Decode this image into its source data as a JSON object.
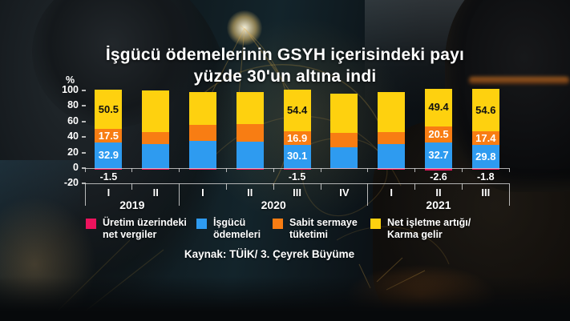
{
  "title": {
    "line1": "İşgücü ödemelerinin GSYH içerisindeki payı",
    "line2": "yüzde 30'un altına indi"
  },
  "axis": {
    "unit_label": "%",
    "y_ticks": [
      100,
      80,
      60,
      40,
      20,
      0,
      -20
    ],
    "ylim": [
      -20,
      100
    ]
  },
  "chart_data": {
    "type": "bar",
    "stacked": true,
    "title": "İşgücü ödemelerinin GSYH içerisindeki payı yüzde 30'un altına indi",
    "xlabel": "",
    "ylabel": "%",
    "ylim": [
      -20,
      100
    ],
    "grid": false,
    "categories": [
      "I",
      "II",
      "I",
      "II",
      "III",
      "IV",
      "I",
      "II",
      "III"
    ],
    "year_groups": [
      {
        "label": "2019",
        "span": 2
      },
      {
        "label": "2020",
        "span": 4
      },
      {
        "label": "2021",
        "span": 3
      }
    ],
    "series": [
      {
        "name": "Üretim üzerindeki net vergiler",
        "color": "#ec135d",
        "values": [
          -1.5,
          -1.5,
          -1.5,
          -2.0,
          -1.5,
          -1.0,
          -1.5,
          -2.6,
          -1.8
        ]
      },
      {
        "name": "İşgücü ödemeleri",
        "color": "#2e9bf0",
        "label_color": "#ffffff",
        "values": [
          32.9,
          30.5,
          35.0,
          34.0,
          30.1,
          27.0,
          31.0,
          32.7,
          29.8
        ]
      },
      {
        "name": "Sabit sermaye tüketimi",
        "color": "#f87d13",
        "label_color": "#ffffff",
        "values": [
          17.5,
          16.0,
          21.0,
          23.0,
          16.9,
          18.0,
          15.0,
          20.5,
          17.4
        ]
      },
      {
        "name": "Net işletme artığı/Karma gelir",
        "color": "#fed10f",
        "label_color": "#111111",
        "values": [
          50.5,
          53.5,
          42.0,
          41.0,
          54.4,
          51.0,
          52.0,
          49.4,
          54.6
        ]
      }
    ],
    "labeled_bars": [
      0,
      4,
      7,
      8
    ],
    "legend_position": "bottom"
  },
  "legend": [
    {
      "lines": [
        "Üretim üzerindeki",
        "net vergiler"
      ],
      "color": "#ec135d"
    },
    {
      "lines": [
        "İşgücü",
        "ödemeleri"
      ],
      "color": "#2e9bf0"
    },
    {
      "lines": [
        "Sabit sermaye",
        "tüketimi"
      ],
      "color": "#f87d13"
    },
    {
      "lines": [
        "Net işletme artığı/",
        "Karma gelir"
      ],
      "color": "#fed10f"
    }
  ],
  "source": "Kaynak: TÜİK/ 3. Çeyrek Büyüme"
}
